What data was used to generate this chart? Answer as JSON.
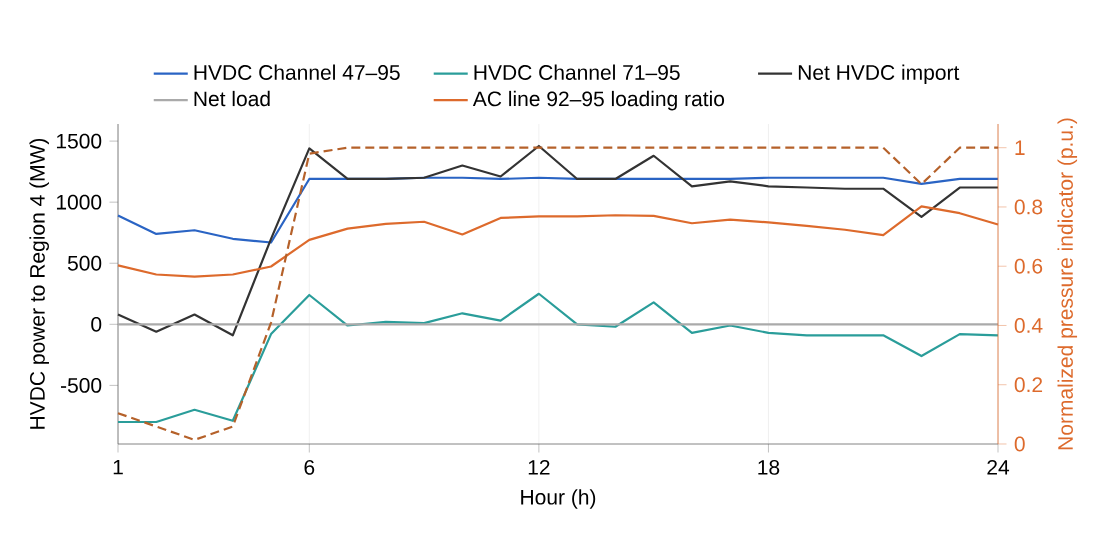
{
  "chart_data": {
    "type": "line",
    "xlabel": "Hour (h)",
    "ylabel": "HVDC power to Region 4 (MW)",
    "y2label": "Normalized pressure indicator (p.u.)",
    "x": [
      1,
      2,
      3,
      4,
      5,
      6,
      7,
      8,
      9,
      10,
      11,
      12,
      13,
      14,
      15,
      16,
      17,
      18,
      19,
      20,
      21,
      22,
      23,
      24
    ],
    "xlim": [
      1,
      24
    ],
    "xticks": [
      1,
      6,
      12,
      18,
      24
    ],
    "ylim": [
      -980,
      1640
    ],
    "yticks": [
      -500,
      0,
      500,
      1000,
      1500
    ],
    "y2lim": [
      0,
      1.08
    ],
    "y2ticks": [
      0,
      0.2,
      0.4,
      0.6,
      0.8,
      1
    ],
    "grid": "x",
    "legend": "top",
    "series": [
      {
        "name": "HVDC Channel 47–95",
        "color": "#2a64c4",
        "values": [
          890,
          740,
          770,
          700,
          670,
          1190,
          1190,
          1190,
          1200,
          1200,
          1190,
          1200,
          1190,
          1190,
          1190,
          1190,
          1190,
          1200,
          1200,
          1200,
          1200,
          1150,
          1190,
          1190
        ]
      },
      {
        "name": "HVDC Channel 71–95",
        "color": "#2a9d9a",
        "values": [
          -800,
          -800,
          -700,
          -790,
          -80,
          240,
          -10,
          20,
          10,
          90,
          30,
          250,
          0,
          -20,
          180,
          -70,
          -10,
          -70,
          -90,
          -90,
          -90,
          -260,
          -80,
          -90
        ]
      },
      {
        "name": "Net HVDC import",
        "color": "#333333",
        "values": [
          80,
          -60,
          80,
          -90,
          700,
          1440,
          1190,
          1190,
          1200,
          1300,
          1210,
          1460,
          1190,
          1190,
          1380,
          1130,
          1170,
          1130,
          1120,
          1110,
          1110,
          880,
          1120,
          1120
        ]
      },
      {
        "name": "Net load",
        "color": "#aaaaaa",
        "values": [
          0,
          0,
          0,
          0,
          0,
          0,
          0,
          0,
          0,
          0,
          0,
          0,
          0,
          0,
          0,
          0,
          0,
          0,
          0,
          0,
          0,
          0,
          0,
          0
        ]
      },
      {
        "name": "AC line 92–95 loading ratio",
        "color": "#dd6a2c",
        "axis": "y2",
        "values": [
          0.603,
          0.572,
          0.565,
          0.572,
          0.599,
          0.689,
          0.727,
          0.743,
          0.75,
          0.707,
          0.763,
          0.768,
          0.768,
          0.772,
          0.77,
          0.745,
          0.757,
          0.748,
          0.736,
          0.723,
          0.705,
          0.802,
          0.779,
          0.741
        ]
      },
      {
        "color": "#b5612a",
        "axis": "y2",
        "line_style": "dashed",
        "values": [
          0.104,
          0.059,
          0.014,
          0.059,
          0.41,
          0.98,
          1,
          1,
          1,
          1,
          1,
          1,
          1,
          1,
          1,
          1,
          1,
          1,
          1,
          1,
          1,
          0.877,
          1,
          1
        ]
      }
    ]
  }
}
